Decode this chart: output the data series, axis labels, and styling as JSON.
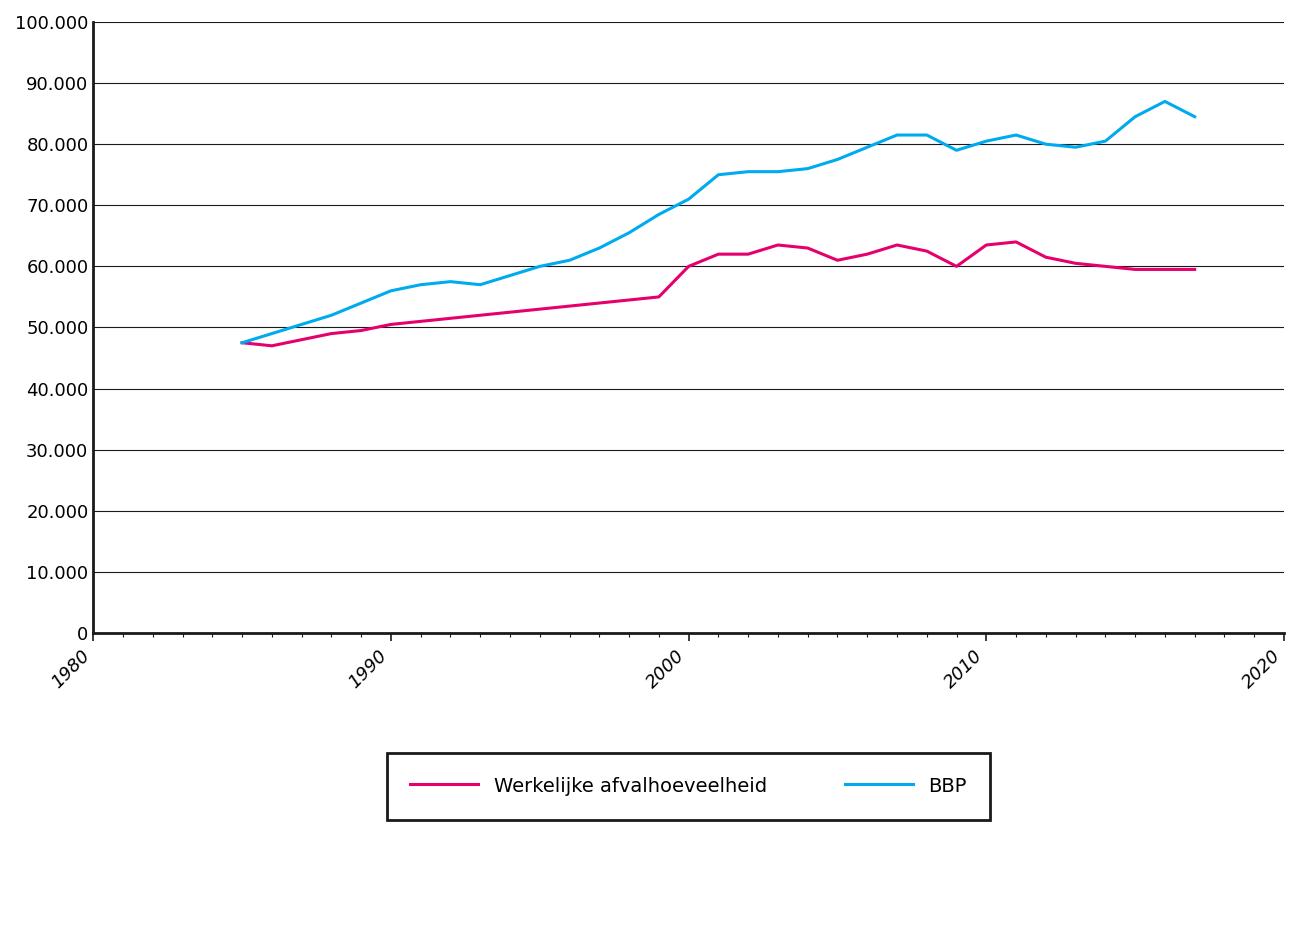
{
  "xlim": [
    1980,
    2020
  ],
  "ylim": [
    0,
    100000
  ],
  "yticks": [
    0,
    10000,
    20000,
    30000,
    40000,
    50000,
    60000,
    70000,
    80000,
    90000,
    100000
  ],
  "xticks": [
    1980,
    1990,
    2000,
    2010,
    2020
  ],
  "afval_years": [
    1985,
    1986,
    1987,
    1988,
    1989,
    1990,
    1991,
    1992,
    1993,
    1994,
    1995,
    1996,
    1997,
    1998,
    1999,
    2000,
    2001,
    2002,
    2003,
    2004,
    2005,
    2006,
    2007,
    2008,
    2009,
    2010,
    2011,
    2012,
    2013,
    2014,
    2015,
    2016,
    2017
  ],
  "afval_values": [
    47500,
    47000,
    48000,
    49000,
    49500,
    50500,
    51000,
    51500,
    52000,
    52500,
    53000,
    53500,
    54000,
    54500,
    55000,
    60000,
    62000,
    62000,
    63500,
    63000,
    61000,
    62000,
    63500,
    62500,
    60000,
    63500,
    64000,
    61500,
    60500,
    60000,
    59500,
    59500,
    59500
  ],
  "bbp_years": [
    1985,
    1986,
    1987,
    1988,
    1989,
    1990,
    1991,
    1992,
    1993,
    1994,
    1995,
    1996,
    1997,
    1998,
    1999,
    2000,
    2001,
    2002,
    2003,
    2004,
    2005,
    2006,
    2007,
    2008,
    2009,
    2010,
    2011,
    2012,
    2013,
    2014,
    2015,
    2016,
    2017
  ],
  "bbp_values": [
    47500,
    49000,
    50500,
    52000,
    54000,
    56000,
    57000,
    57500,
    57000,
    58500,
    60000,
    61000,
    63000,
    65500,
    68500,
    71000,
    75000,
    75500,
    75500,
    76000,
    77500,
    79500,
    81500,
    81500,
    79000,
    80500,
    81500,
    80000,
    79500,
    80500,
    84500,
    87000,
    84500
  ],
  "afval_color": "#e6006e",
  "bbp_color": "#00aaee",
  "line_width": 2.2,
  "legend_afval": "Werkelijke afvalhoeveelheid",
  "legend_bbp": "BBP",
  "background_color": "#ffffff",
  "grid_color": "#1a1a1a",
  "spine_color": "#1a1a1a"
}
